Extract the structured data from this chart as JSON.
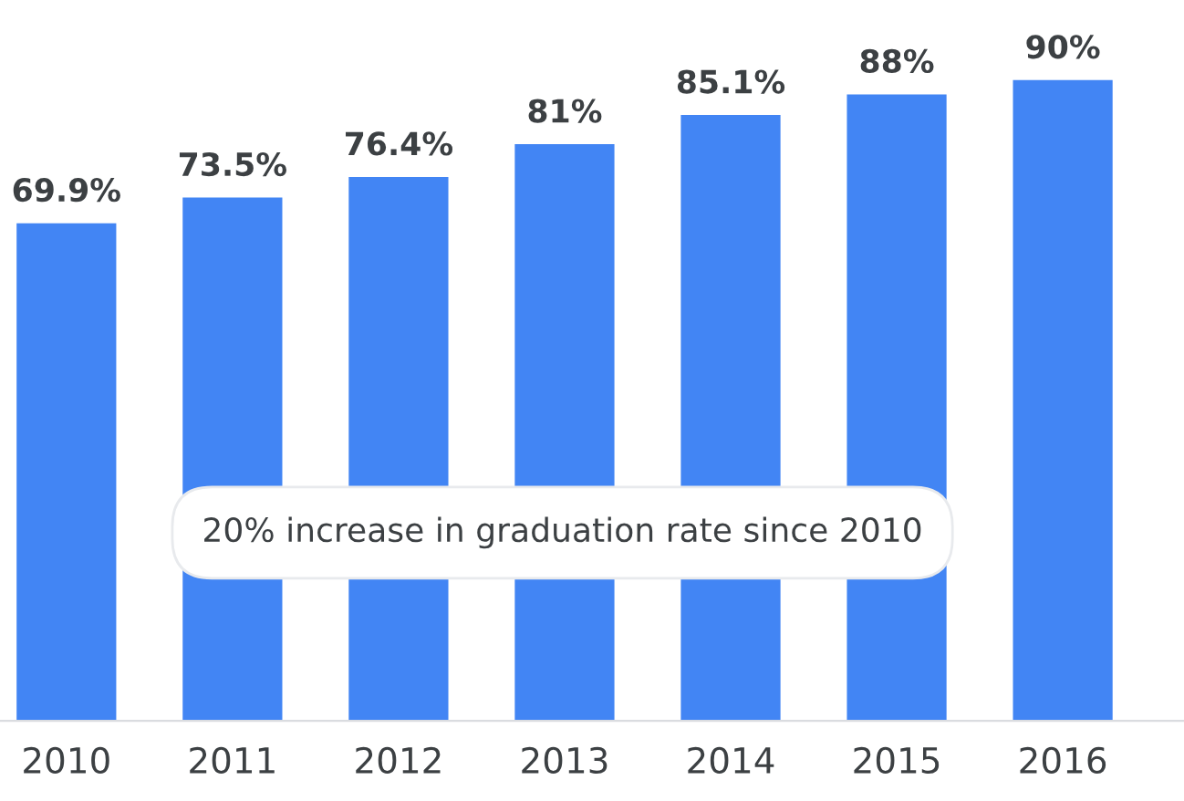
{
  "chart_data": {
    "type": "bar",
    "categories": [
      "2010",
      "2011",
      "2012",
      "2013",
      "2014",
      "2015",
      "2016"
    ],
    "values": [
      69.9,
      73.5,
      76.4,
      81,
      85.1,
      88,
      90
    ],
    "value_labels": [
      "69.9%",
      "73.5%",
      "76.4%",
      "81%",
      "85.1%",
      "88%",
      "90%"
    ],
    "color": "#4285f4",
    "tick_labels": "x",
    "grid": false,
    "annotations": [
      "20% increase in graduation rate since 2010"
    ]
  }
}
